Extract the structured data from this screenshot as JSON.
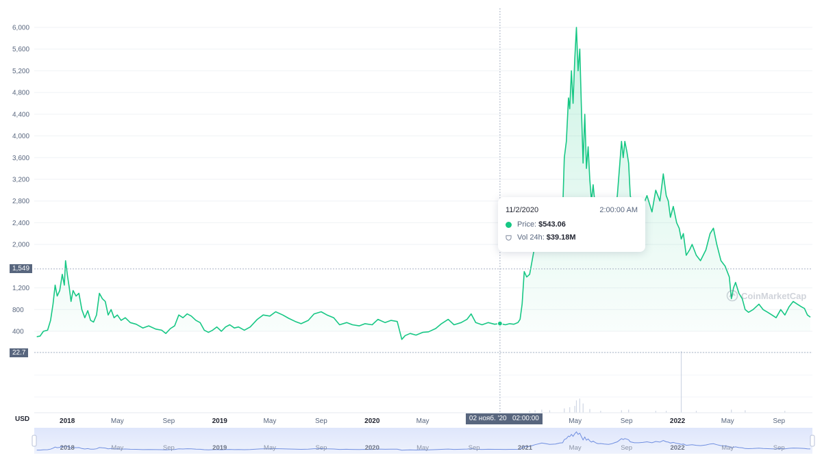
{
  "chart_data": {
    "type": "area",
    "title": "",
    "currency_label": "USD",
    "line_color": "#16c784",
    "yticks": [
      400,
      800,
      1200,
      2000,
      2400,
      2800,
      3200,
      3600,
      4000,
      4400,
      4800,
      5200,
      5600,
      6000
    ],
    "ytick_labels": [
      "400",
      "800",
      "1,200",
      "2,000",
      "2,400",
      "2,800",
      "3,200",
      "3,600",
      "4,000",
      "4,400",
      "4,800",
      "5,200",
      "5,600",
      "6,000"
    ],
    "ylim": [
      0,
      6000
    ],
    "x_axis_labels": [
      {
        "date": "2018-01-01",
        "label": "2018",
        "year": true
      },
      {
        "date": "2018-05-01",
        "label": "May"
      },
      {
        "date": "2018-09-01",
        "label": "Sep"
      },
      {
        "date": "2019-01-01",
        "label": "2019",
        "year": true
      },
      {
        "date": "2019-05-01",
        "label": "May"
      },
      {
        "date": "2019-09-01",
        "label": "Sep"
      },
      {
        "date": "2020-01-01",
        "label": "2020",
        "year": true
      },
      {
        "date": "2020-05-01",
        "label": "May"
      },
      {
        "date": "2021-05-01",
        "label": "May"
      },
      {
        "date": "2021-09-01",
        "label": "Sep"
      },
      {
        "date": "2022-01-01",
        "label": "2022",
        "year": true
      },
      {
        "date": "2022-05-01",
        "label": "May"
      },
      {
        "date": "2022-09-01",
        "label": "Sep"
      }
    ],
    "navigator_labels": [
      {
        "date": "2018-01-01",
        "label": "2018",
        "year": true
      },
      {
        "date": "2018-05-01",
        "label": "May"
      },
      {
        "date": "2018-09-01",
        "label": "Sep"
      },
      {
        "date": "2019-01-01",
        "label": "2019",
        "year": true
      },
      {
        "date": "2019-05-01",
        "label": "May"
      },
      {
        "date": "2019-09-01",
        "label": "Sep"
      },
      {
        "date": "2020-01-01",
        "label": "2020",
        "year": true
      },
      {
        "date": "2020-05-01",
        "label": "May"
      },
      {
        "date": "2020-09-01",
        "label": "Sep"
      },
      {
        "date": "2021-01-01",
        "label": "2021",
        "year": true
      },
      {
        "date": "2021-05-01",
        "label": "May"
      },
      {
        "date": "2021-09-01",
        "label": "Sep"
      },
      {
        "date": "2022-01-01",
        "label": "2022",
        "year": true
      },
      {
        "date": "2022-05-01",
        "label": "May"
      },
      {
        "date": "2022-09-01",
        "label": "Sep"
      }
    ],
    "series": [
      {
        "points": [
          [
            "2017-10-20",
            300
          ],
          [
            "2017-10-28",
            310
          ],
          [
            "2017-11-05",
            400
          ],
          [
            "2017-11-15",
            420
          ],
          [
            "2017-11-22",
            600
          ],
          [
            "2017-11-28",
            900
          ],
          [
            "2017-12-03",
            1250
          ],
          [
            "2017-12-08",
            1050
          ],
          [
            "2017-12-14",
            1150
          ],
          [
            "2017-12-20",
            1450
          ],
          [
            "2017-12-25",
            1250
          ],
          [
            "2017-12-28",
            1700
          ],
          [
            "2018-01-02",
            1400
          ],
          [
            "2018-01-06",
            1200
          ],
          [
            "2018-01-10",
            950
          ],
          [
            "2018-01-15",
            1150
          ],
          [
            "2018-01-22",
            1050
          ],
          [
            "2018-01-29",
            1100
          ],
          [
            "2018-02-05",
            800
          ],
          [
            "2018-02-12",
            650
          ],
          [
            "2018-02-19",
            780
          ],
          [
            "2018-02-26",
            600
          ],
          [
            "2018-03-05",
            570
          ],
          [
            "2018-03-12",
            700
          ],
          [
            "2018-03-19",
            1100
          ],
          [
            "2018-03-26",
            1000
          ],
          [
            "2018-04-02",
            950
          ],
          [
            "2018-04-09",
            700
          ],
          [
            "2018-04-16",
            800
          ],
          [
            "2018-04-23",
            650
          ],
          [
            "2018-05-01",
            700
          ],
          [
            "2018-05-10",
            600
          ],
          [
            "2018-05-20",
            650
          ],
          [
            "2018-06-01",
            560
          ],
          [
            "2018-06-15",
            530
          ],
          [
            "2018-07-01",
            460
          ],
          [
            "2018-07-15",
            500
          ],
          [
            "2018-08-01",
            440
          ],
          [
            "2018-08-15",
            420
          ],
          [
            "2018-08-25",
            360
          ],
          [
            "2018-09-05",
            450
          ],
          [
            "2018-09-15",
            500
          ],
          [
            "2018-09-25",
            700
          ],
          [
            "2018-10-05",
            650
          ],
          [
            "2018-10-15",
            720
          ],
          [
            "2018-10-25",
            680
          ],
          [
            "2018-11-05",
            600
          ],
          [
            "2018-11-15",
            560
          ],
          [
            "2018-11-25",
            420
          ],
          [
            "2018-12-05",
            380
          ],
          [
            "2018-12-15",
            420
          ],
          [
            "2018-12-25",
            480
          ],
          [
            "2019-01-05",
            400
          ],
          [
            "2019-01-15",
            480
          ],
          [
            "2019-01-25",
            520
          ],
          [
            "2019-02-05",
            460
          ],
          [
            "2019-02-15",
            480
          ],
          [
            "2019-03-01",
            420
          ],
          [
            "2019-03-15",
            480
          ],
          [
            "2019-04-01",
            620
          ],
          [
            "2019-04-15",
            700
          ],
          [
            "2019-05-01",
            680
          ],
          [
            "2019-05-15",
            760
          ],
          [
            "2019-06-01",
            700
          ],
          [
            "2019-06-15",
            640
          ],
          [
            "2019-07-01",
            580
          ],
          [
            "2019-07-15",
            540
          ],
          [
            "2019-08-01",
            600
          ],
          [
            "2019-08-15",
            720
          ],
          [
            "2019-09-01",
            760
          ],
          [
            "2019-09-15",
            700
          ],
          [
            "2019-10-01",
            650
          ],
          [
            "2019-10-15",
            520
          ],
          [
            "2019-11-01",
            560
          ],
          [
            "2019-11-15",
            520
          ],
          [
            "2019-12-01",
            500
          ],
          [
            "2019-12-15",
            540
          ],
          [
            "2020-01-01",
            520
          ],
          [
            "2020-01-15",
            620
          ],
          [
            "2020-02-01",
            560
          ],
          [
            "2020-02-15",
            600
          ],
          [
            "2020-03-01",
            580
          ],
          [
            "2020-03-12",
            250
          ],
          [
            "2020-03-20",
            320
          ],
          [
            "2020-04-01",
            360
          ],
          [
            "2020-04-15",
            330
          ],
          [
            "2020-05-01",
            380
          ],
          [
            "2020-05-15",
            390
          ],
          [
            "2020-06-01",
            450
          ],
          [
            "2020-06-15",
            540
          ],
          [
            "2020-07-01",
            620
          ],
          [
            "2020-07-15",
            520
          ],
          [
            "2020-08-01",
            560
          ],
          [
            "2020-08-15",
            620
          ],
          [
            "2020-08-25",
            720
          ],
          [
            "2020-09-05",
            560
          ],
          [
            "2020-09-20",
            520
          ],
          [
            "2020-10-05",
            560
          ],
          [
            "2020-10-20",
            530
          ],
          [
            "2020-11-02",
            543.06
          ],
          [
            "2020-11-15",
            520
          ],
          [
            "2020-11-25",
            540
          ],
          [
            "2020-12-05",
            530
          ],
          [
            "2020-12-15",
            560
          ],
          [
            "2020-12-20",
            620
          ],
          [
            "2020-12-25",
            900
          ],
          [
            "2020-12-30",
            1500
          ],
          [
            "2021-01-05",
            1400
          ],
          [
            "2021-01-12",
            1450
          ],
          [
            "2021-01-18",
            1700
          ],
          [
            "2021-01-25",
            2000
          ],
          [
            "2021-02-01",
            2200
          ],
          [
            "2021-02-10",
            2500
          ],
          [
            "2021-02-20",
            2300
          ],
          [
            "2021-03-01",
            2100
          ],
          [
            "2021-03-15",
            2200
          ],
          [
            "2021-03-25",
            2500
          ],
          [
            "2021-04-01",
            2600
          ],
          [
            "2021-04-05",
            3600
          ],
          [
            "2021-04-10",
            3900
          ],
          [
            "2021-04-15",
            4700
          ],
          [
            "2021-04-18",
            4500
          ],
          [
            "2021-04-22",
            5200
          ],
          [
            "2021-04-26",
            4600
          ],
          [
            "2021-04-30",
            5400
          ],
          [
            "2021-05-04",
            6000
          ],
          [
            "2021-05-08",
            5200
          ],
          [
            "2021-05-12",
            5600
          ],
          [
            "2021-05-16",
            4500
          ],
          [
            "2021-05-20",
            3500
          ],
          [
            "2021-05-24",
            4400
          ],
          [
            "2021-05-28",
            3400
          ],
          [
            "2021-06-01",
            3800
          ],
          [
            "2021-06-05",
            3200
          ],
          [
            "2021-06-09",
            2800
          ],
          [
            "2021-06-13",
            3100
          ],
          [
            "2021-06-18",
            2700
          ],
          [
            "2021-06-22",
            2400
          ],
          [
            "2021-06-26",
            2300
          ],
          [
            "2021-07-01",
            2350
          ],
          [
            "2021-07-10",
            2200
          ],
          [
            "2021-07-20",
            2100
          ],
          [
            "2021-07-28",
            2300
          ],
          [
            "2021-08-03",
            2600
          ],
          [
            "2021-08-10",
            2900
          ],
          [
            "2021-08-16",
            3500
          ],
          [
            "2021-08-20",
            3900
          ],
          [
            "2021-08-24",
            3600
          ],
          [
            "2021-08-28",
            3900
          ],
          [
            "2021-09-02",
            3700
          ],
          [
            "2021-09-06",
            3500
          ],
          [
            "2021-09-10",
            2900
          ],
          [
            "2021-09-20",
            2600
          ],
          [
            "2021-09-30",
            2600
          ],
          [
            "2021-10-10",
            2700
          ],
          [
            "2021-10-20",
            2900
          ],
          [
            "2021-11-01",
            2600
          ],
          [
            "2021-11-10",
            3000
          ],
          [
            "2021-11-20",
            2800
          ],
          [
            "2021-11-28",
            3300
          ],
          [
            "2021-12-05",
            2900
          ],
          [
            "2021-12-10",
            2800
          ],
          [
            "2021-12-15",
            2500
          ],
          [
            "2021-12-22",
            2700
          ],
          [
            "2021-12-30",
            2400
          ],
          [
            "2022-01-05",
            2300
          ],
          [
            "2022-01-10",
            2100
          ],
          [
            "2022-01-15",
            2200
          ],
          [
            "2022-01-22",
            1800
          ],
          [
            "2022-01-30",
            1900
          ],
          [
            "2022-02-05",
            2000
          ],
          [
            "2022-02-15",
            1800
          ],
          [
            "2022-02-25",
            1700
          ],
          [
            "2022-03-10",
            1900
          ],
          [
            "2022-03-20",
            2200
          ],
          [
            "2022-03-28",
            2300
          ],
          [
            "2022-04-05",
            2000
          ],
          [
            "2022-04-15",
            1700
          ],
          [
            "2022-04-25",
            1600
          ],
          [
            "2022-05-05",
            1400
          ],
          [
            "2022-05-10",
            1000
          ],
          [
            "2022-05-15",
            1200
          ],
          [
            "2022-05-20",
            1300
          ],
          [
            "2022-05-28",
            1100
          ],
          [
            "2022-06-05",
            1000
          ],
          [
            "2022-06-12",
            800
          ],
          [
            "2022-06-20",
            750
          ],
          [
            "2022-07-01",
            800
          ],
          [
            "2022-07-15",
            900
          ],
          [
            "2022-07-25",
            800
          ],
          [
            "2022-08-05",
            750
          ],
          [
            "2022-08-15",
            700
          ],
          [
            "2022-08-25",
            650
          ],
          [
            "2022-09-05",
            800
          ],
          [
            "2022-09-15",
            700
          ],
          [
            "2022-09-25",
            850
          ],
          [
            "2022-10-05",
            950
          ],
          [
            "2022-10-15",
            900
          ],
          [
            "2022-10-25",
            850
          ],
          [
            "2022-11-01",
            820
          ],
          [
            "2022-11-08",
            700
          ],
          [
            "2022-11-15",
            660
          ]
        ]
      }
    ],
    "volume_bars": [
      [
        "2021-01-12",
        0.03
      ],
      [
        "2021-01-25",
        0.04
      ],
      [
        "2021-02-10",
        0.05
      ],
      [
        "2021-03-01",
        0.04
      ],
      [
        "2021-04-05",
        0.07
      ],
      [
        "2021-04-18",
        0.09
      ],
      [
        "2021-04-30",
        0.11
      ],
      [
        "2021-05-04",
        0.2
      ],
      [
        "2021-05-12",
        0.23
      ],
      [
        "2021-05-20",
        0.15
      ],
      [
        "2021-06-05",
        0.06
      ],
      [
        "2021-07-01",
        0.03
      ],
      [
        "2021-08-20",
        0.04
      ],
      [
        "2021-09-06",
        0.05
      ],
      [
        "2021-11-10",
        0.03
      ],
      [
        "2021-12-05",
        0.03
      ],
      [
        "2022-01-10",
        1.0
      ],
      [
        "2022-02-15",
        0.03
      ],
      [
        "2022-05-10",
        0.05
      ],
      [
        "2022-06-12",
        0.04
      ],
      [
        "2022-09-15",
        0.03
      ]
    ],
    "highlight": {
      "date": "2020-11-02",
      "price": 543.06,
      "date_label": "11/2/2020",
      "time_label": "2:00:00 AM",
      "price_label": "Price:",
      "price_value": "$543.06",
      "volume_label": "Vol 24h:",
      "volume_value": "$39.18M",
      "x_flag": "02 нояб. '20   02:00:00"
    },
    "y_flags": [
      {
        "value": 1549,
        "label": "1,549"
      },
      {
        "value": 22.7,
        "label": "22.7"
      }
    ],
    "watermark": "CoinMarketCap"
  }
}
